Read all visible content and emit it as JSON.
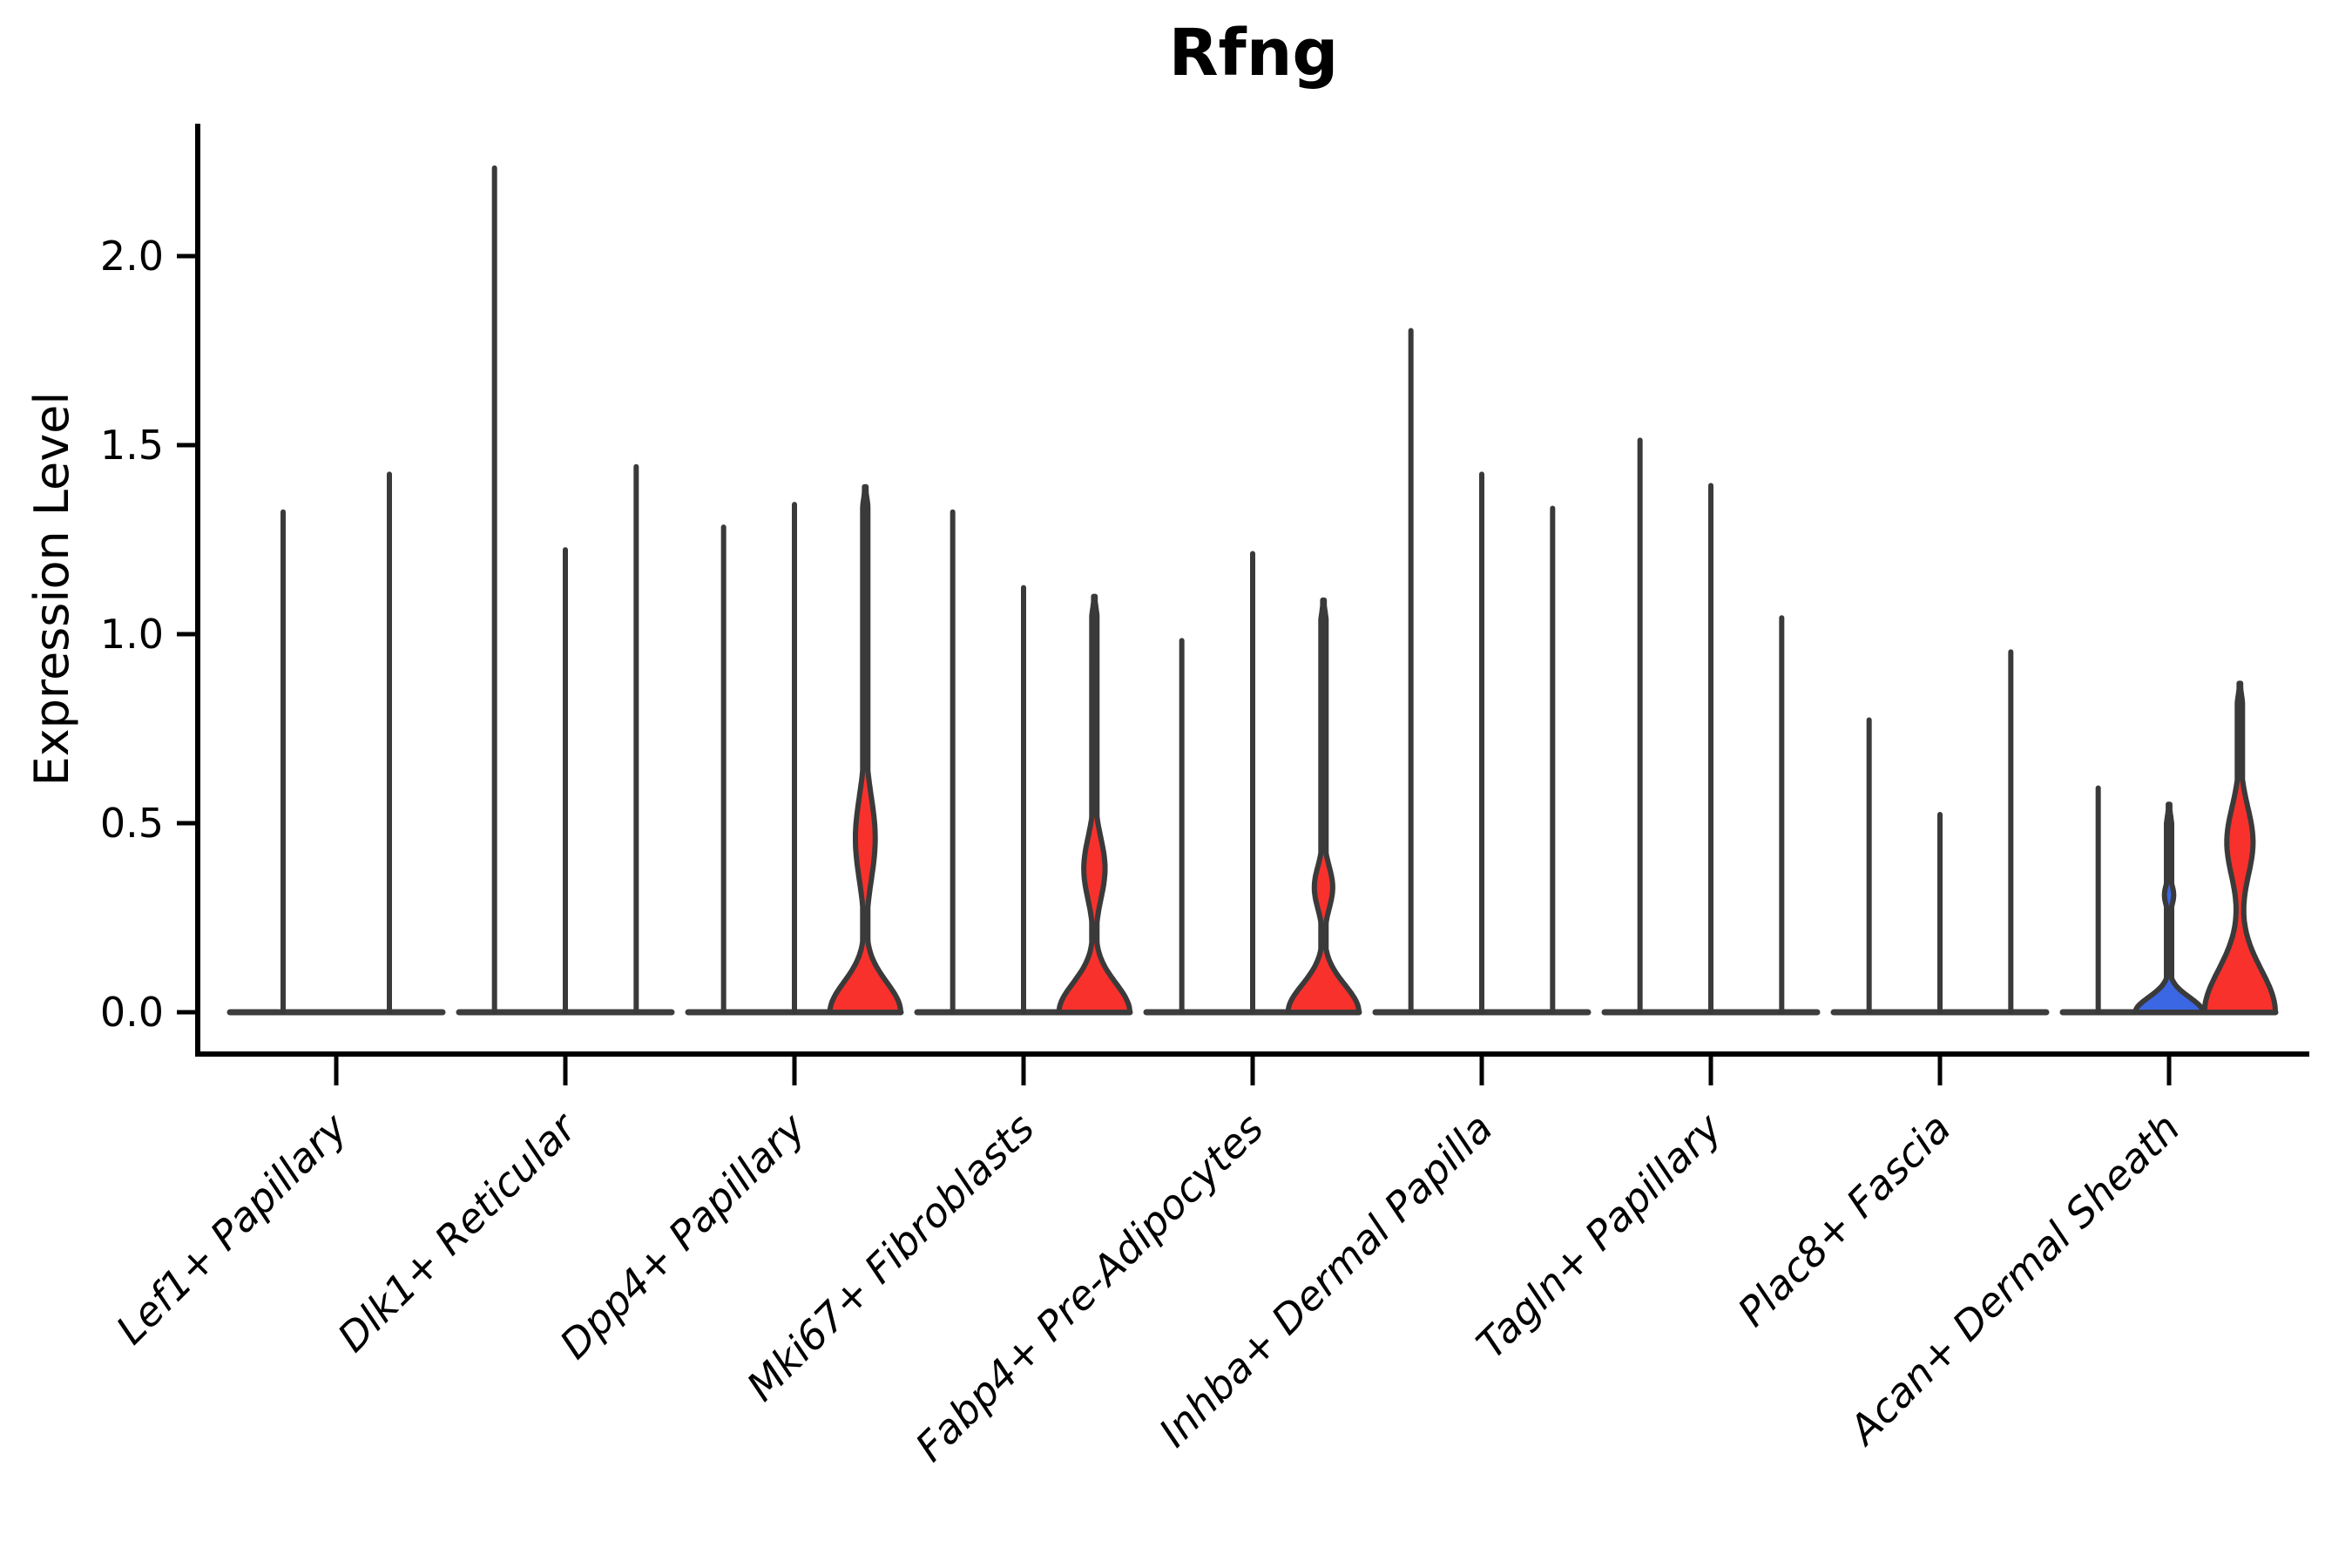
{
  "chart_data": {
    "type": "violin",
    "title": "Rfng",
    "xlabel": "",
    "ylabel": "Expression Level",
    "ytick_labels": [
      "0.0",
      "0.5",
      "1.0",
      "1.5",
      "2.0"
    ],
    "ytick_values": [
      0.0,
      0.5,
      1.0,
      1.5,
      2.0
    ],
    "ylim": [
      -0.11,
      2.35
    ],
    "grid": false,
    "legend": "none",
    "colors": {
      "red_fill": "#f8312c",
      "blue_fill": "#3b67e4",
      "violin_outline": "#3a3a3a",
      "baseline": "#3d3d3d",
      "axis": "#000000",
      "background": "#ffffff"
    },
    "categories": [
      "Lef1+ Papillary",
      "Dlk1+ Reticular",
      "Dpp4+ Papillary",
      "Mki67+ Fibroblasts",
      "Fabp4+ Pre-Adipocytes",
      "Inhba+ Dermal Papilla",
      "Tagln+ Papillary",
      "Plac8+ Fascia",
      "Acan+ Dermal Sheath"
    ],
    "violins": [
      {
        "category": "Lef1+ Papillary",
        "items": [
          {
            "max": 1.33,
            "fill": "plain"
          },
          {
            "max": 1.43,
            "fill": "plain"
          }
        ]
      },
      {
        "category": "Dlk1+ Reticular",
        "items": [
          {
            "max": 2.24,
            "fill": "plain"
          },
          {
            "max": 1.23,
            "fill": "plain"
          },
          {
            "max": 1.45,
            "fill": "plain"
          }
        ]
      },
      {
        "category": "Dpp4+ Papillary",
        "items": [
          {
            "max": 1.29,
            "fill": "plain"
          },
          {
            "max": 1.35,
            "fill": "plain"
          },
          {
            "max": 1.39,
            "fill": "red",
            "bulge": {
              "center": 0.46,
              "sigma": 0.155,
              "width": 0.28
            },
            "mound": {
              "top": 0.17,
              "width": 1.0
            }
          }
        ]
      },
      {
        "category": "Mki67+ Fibroblasts",
        "items": [
          {
            "max": 1.33,
            "fill": "plain"
          },
          {
            "max": 1.13,
            "fill": "plain"
          },
          {
            "max": 1.1,
            "fill": "red",
            "bulge": {
              "center": 0.38,
              "sigma": 0.115,
              "width": 0.3
            },
            "mound": {
              "top": 0.165,
              "width": 1.0
            }
          }
        ]
      },
      {
        "category": "Fabp4+ Pre-Adipocytes",
        "items": [
          {
            "max": 0.99,
            "fill": "plain"
          },
          {
            "max": 1.22,
            "fill": "plain"
          },
          {
            "max": 1.09,
            "fill": "red",
            "bulge": {
              "center": 0.33,
              "sigma": 0.08,
              "width": 0.26
            },
            "mound": {
              "top": 0.155,
              "width": 1.0
            }
          }
        ]
      },
      {
        "category": "Inhba+ Dermal Papilla",
        "items": [
          {
            "max": 1.81,
            "fill": "plain"
          },
          {
            "max": 1.43,
            "fill": "plain"
          },
          {
            "max": 1.34,
            "fill": "plain"
          }
        ]
      },
      {
        "category": "Tagln+ Papillary",
        "items": [
          {
            "max": 1.52,
            "fill": "plain"
          },
          {
            "max": 1.4,
            "fill": "plain"
          },
          {
            "max": 1.05,
            "fill": "plain"
          }
        ]
      },
      {
        "category": "Plac8+ Fascia",
        "items": [
          {
            "max": 0.78,
            "fill": "plain"
          },
          {
            "max": 0.53,
            "fill": "plain"
          },
          {
            "max": 0.96,
            "fill": "plain"
          }
        ]
      },
      {
        "category": "Acan+ Dermal Sheath",
        "items": [
          {
            "max": 0.6,
            "fill": "plain"
          },
          {
            "max": 0.55,
            "fill": "blue",
            "bulge": {
              "center": 0.31,
              "sigma": 0.04,
              "width": 0.13
            },
            "mound": {
              "top": 0.085,
              "width": 0.95
            }
          },
          {
            "max": 0.87,
            "fill": "red",
            "bulge": {
              "center": 0.45,
              "sigma": 0.13,
              "width": 0.37
            },
            "mound": {
              "top": 0.24,
              "width": 1.0
            }
          }
        ]
      }
    ]
  }
}
